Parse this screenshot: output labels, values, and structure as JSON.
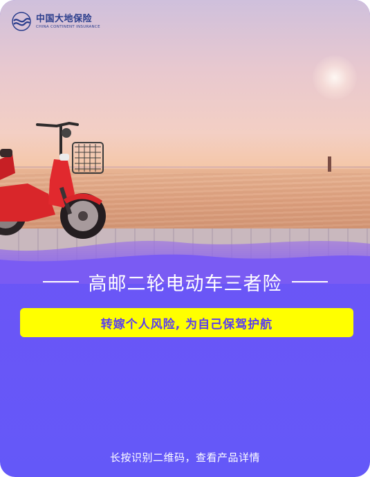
{
  "brand": {
    "name_cn": "中国大地保险",
    "name_en": "CHINA CONTINENT INSURANCE"
  },
  "title": "高邮二轮电动车三者险",
  "tagline": "转嫁个人风险, 为自己保驾护航",
  "footer": "长按识别二维码，查看产品详情",
  "colors": {
    "accent": "#6d55f6",
    "tagline_bg": "#ffff00",
    "tagline_text": "#5a3ef0",
    "logo": "#2a3d8c"
  }
}
